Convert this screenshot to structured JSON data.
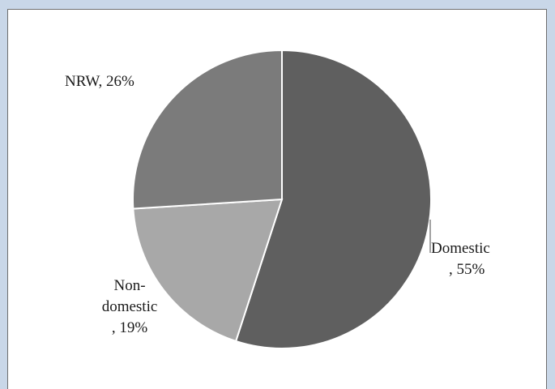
{
  "chart_data": {
    "type": "pie",
    "start_angle_deg": 0,
    "direction": "clockwise",
    "slices": [
      {
        "label": "Domestic",
        "value": 55,
        "display": "Domestic\n, 55%",
        "color": "#5f5f5f"
      },
      {
        "label": "Non-domestic",
        "value": 19,
        "display": "Non-\ndomestic\n, 19%",
        "color": "#a8a8a8"
      },
      {
        "label": "NRW",
        "value": 26,
        "display": "NRW, 26%",
        "color": "#7b7b7b"
      }
    ],
    "title": "",
    "legend": "none",
    "colors": {
      "background": "#c9d7e8",
      "plot_bg": "#ffffff",
      "slice_border": "#ffffff",
      "frame": "#6f6f6f"
    }
  }
}
